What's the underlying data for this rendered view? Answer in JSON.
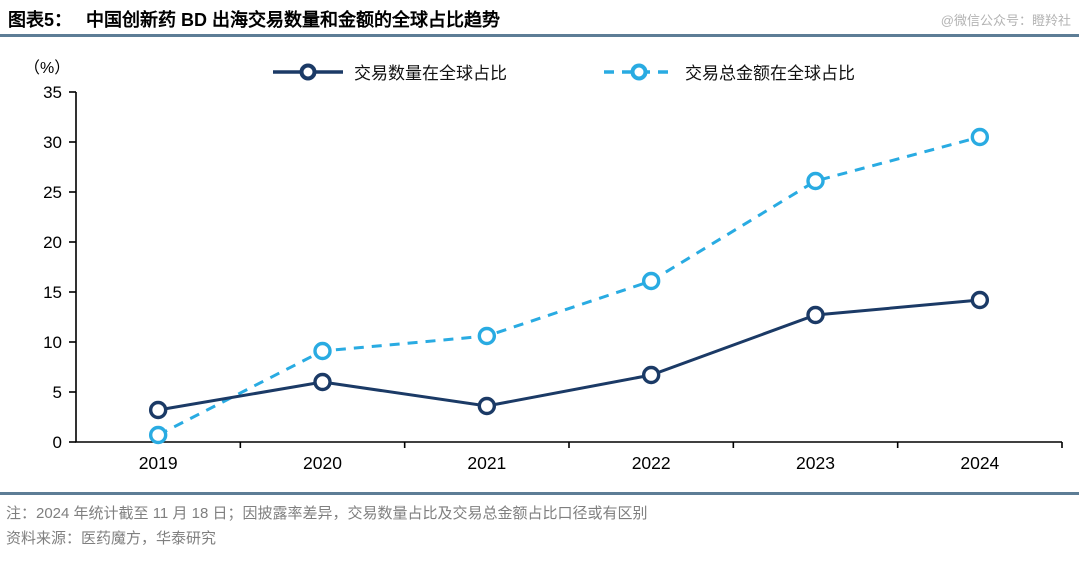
{
  "header": {
    "title_prefix": "图表5：",
    "title": "中国创新药 BD 出海交易数量和金额的全球占比趋势",
    "watermark": "@微信公众号：瞪羚社"
  },
  "chart_data": {
    "type": "line",
    "title": "中国创新药 BD 出海交易数量和金额的全球占比趋势",
    "unit_label": "（%）",
    "categories": [
      "2019",
      "2020",
      "2021",
      "2022",
      "2023",
      "2024"
    ],
    "series": [
      {
        "name": "交易数量在全球占比",
        "style": "solid",
        "color": "#1b3a66",
        "marker": "open-circle",
        "values": [
          3.2,
          6.0,
          3.6,
          6.7,
          12.7,
          14.2
        ]
      },
      {
        "name": "交易总金额在全球占比",
        "style": "dashed",
        "color": "#29abe2",
        "marker": "open-circle",
        "values": [
          0.7,
          9.1,
          10.6,
          16.1,
          26.1,
          30.5
        ]
      }
    ],
    "ylim": [
      0,
      35
    ],
    "yticks": [
      0,
      5,
      10,
      15,
      20,
      25,
      30,
      35
    ],
    "xlabel": "",
    "ylabel": "（%）",
    "grid": false,
    "legend_position": "top"
  },
  "footer": {
    "note": "注：2024 年统计截至 11 月 18 日；因披露率差异，交易数量占比及交易总金额占比口径或有区别",
    "source": "资料来源：医药魔方，华泰研究"
  },
  "colors": {
    "series1": "#1b3a66",
    "series2": "#29abe2",
    "separator": "#5d7d96",
    "note_text": "#7f7f7f",
    "axis": "#000000"
  }
}
